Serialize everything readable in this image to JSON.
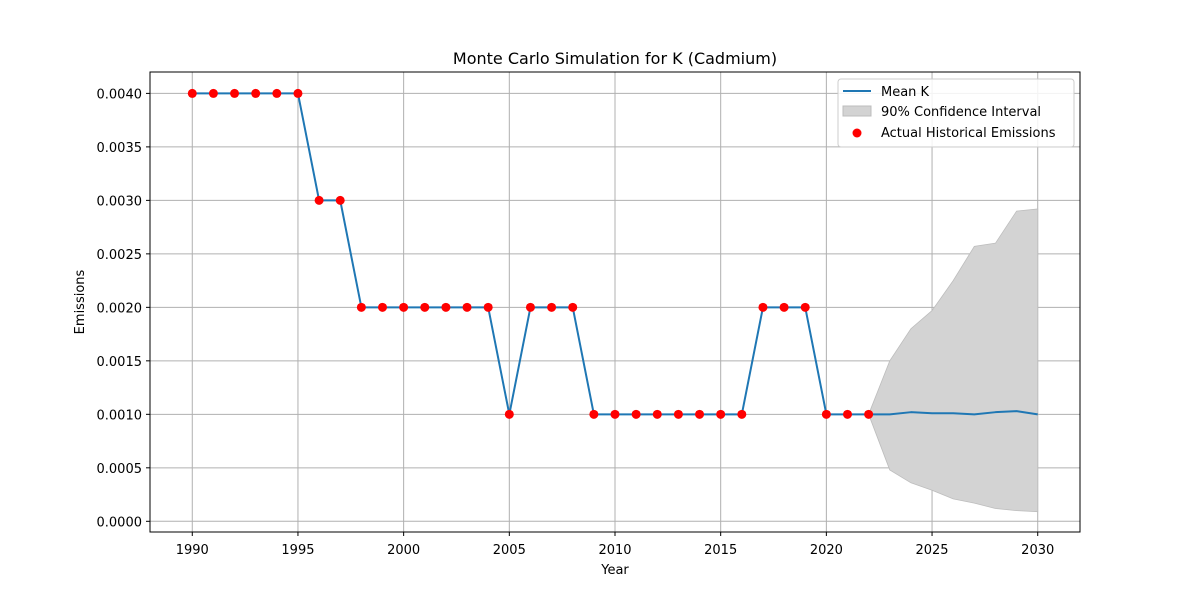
{
  "chart_data": {
    "type": "line",
    "title": "Monte Carlo Simulation for K (Cadmium)",
    "xlabel": "Year",
    "ylabel": "Emissions",
    "xlim": [
      1988,
      2032
    ],
    "ylim": [
      -0.0001,
      0.0042
    ],
    "xticks": [
      1990,
      1995,
      2000,
      2005,
      2010,
      2015,
      2020,
      2025,
      2030
    ],
    "yticks": [
      0.0,
      0.0005,
      0.001,
      0.0015,
      0.002,
      0.0025,
      0.003,
      0.0035,
      0.004
    ],
    "ytick_labels": [
      "0.0000",
      "0.0005",
      "0.0010",
      "0.0015",
      "0.0020",
      "0.0025",
      "0.0030",
      "0.0035",
      "0.0040"
    ],
    "grid": true,
    "legend": {
      "position": "top-right",
      "entries": [
        "Mean K",
        "90% Confidence Interval",
        "Actual Historical Emissions"
      ]
    },
    "colors": {
      "mean": "#1f77b4",
      "ci_fill": "#d3d3d3",
      "ci_edge": "#bdbdbd",
      "actual": "#ff0000"
    },
    "mean_series": {
      "name": "Mean K",
      "x": [
        1990,
        1991,
        1992,
        1993,
        1994,
        1995,
        1996,
        1997,
        1998,
        1999,
        2000,
        2001,
        2002,
        2003,
        2004,
        2005,
        2006,
        2007,
        2008,
        2009,
        2010,
        2011,
        2012,
        2013,
        2014,
        2015,
        2016,
        2017,
        2018,
        2019,
        2020,
        2021,
        2022,
        2023,
        2024,
        2025,
        2026,
        2027,
        2028,
        2029,
        2030
      ],
      "y": [
        0.004,
        0.004,
        0.004,
        0.004,
        0.004,
        0.004,
        0.003,
        0.003,
        0.002,
        0.002,
        0.002,
        0.002,
        0.002,
        0.002,
        0.002,
        0.001,
        0.002,
        0.002,
        0.002,
        0.001,
        0.001,
        0.001,
        0.001,
        0.001,
        0.001,
        0.001,
        0.001,
        0.002,
        0.002,
        0.002,
        0.001,
        0.001,
        0.001,
        0.001,
        0.00102,
        0.00101,
        0.00101,
        0.001,
        0.00102,
        0.00103,
        0.001
      ]
    },
    "confidence_interval": {
      "name": "90% Confidence Interval",
      "x": [
        2022,
        2023,
        2024,
        2025,
        2026,
        2027,
        2028,
        2029,
        2030
      ],
      "lower": [
        0.001,
        0.00048,
        0.00036,
        0.00029,
        0.00021,
        0.00017,
        0.00012,
        0.0001,
        9e-05
      ],
      "upper": [
        0.001,
        0.0015,
        0.0018,
        0.00197,
        0.00225,
        0.00257,
        0.0026,
        0.0029,
        0.00292
      ]
    },
    "actual_series": {
      "name": "Actual Historical Emissions",
      "x": [
        1990,
        1991,
        1992,
        1993,
        1994,
        1995,
        1996,
        1997,
        1998,
        1999,
        2000,
        2001,
        2002,
        2003,
        2004,
        2005,
        2006,
        2007,
        2008,
        2009,
        2010,
        2011,
        2012,
        2013,
        2014,
        2015,
        2016,
        2017,
        2018,
        2019,
        2020,
        2021,
        2022
      ],
      "y": [
        0.004,
        0.004,
        0.004,
        0.004,
        0.004,
        0.004,
        0.003,
        0.003,
        0.002,
        0.002,
        0.002,
        0.002,
        0.002,
        0.002,
        0.002,
        0.001,
        0.002,
        0.002,
        0.002,
        0.001,
        0.001,
        0.001,
        0.001,
        0.001,
        0.001,
        0.001,
        0.001,
        0.002,
        0.002,
        0.002,
        0.001,
        0.001,
        0.001
      ]
    }
  }
}
